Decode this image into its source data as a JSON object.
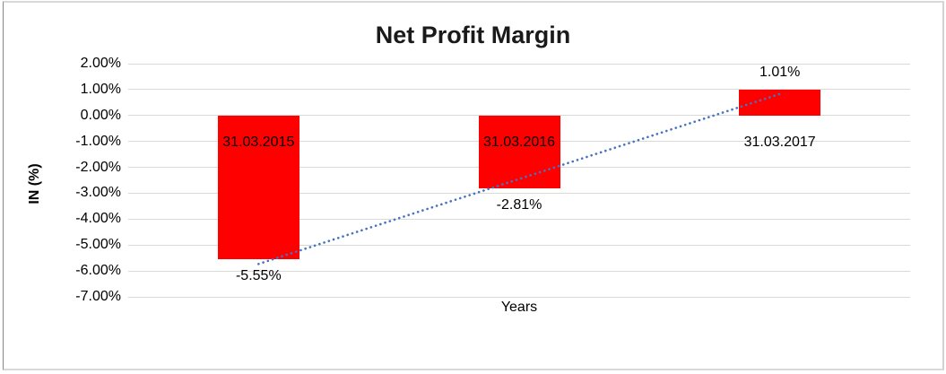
{
  "chart_data": {
    "type": "bar",
    "title": "Net Profit Margin",
    "xlabel": "Years",
    "ylabel": "IN (%)",
    "categories": [
      "31.03.2015",
      "31.03.2016",
      "31.03.2017"
    ],
    "values": [
      -5.55,
      -2.81,
      1.01
    ],
    "data_labels": [
      "-5.55%",
      "-2.81%",
      "1.01%"
    ],
    "y_ticks": [
      "2.00%",
      "1.00%",
      "0.00%",
      "-1.00%",
      "-2.00%",
      "-3.00%",
      "-4.00%",
      "-5.00%",
      "-6.00%",
      "-7.00%"
    ],
    "ylim": [
      -7,
      2
    ],
    "grid": "horizontal",
    "legend": "none",
    "bar_color": "#ff0000",
    "gridline_color": "#d9d9d9",
    "text_color": "#000000",
    "trendline": {
      "type": "linear",
      "style": "dotted",
      "color": "#4472c4"
    }
  }
}
